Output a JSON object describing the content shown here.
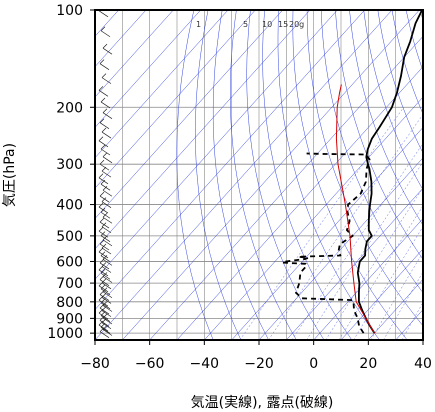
{
  "chart_data": {
    "type": "line",
    "title": "",
    "xlabel": "気温(実線), 露点(破線)",
    "ylabel": "気圧(hPa)",
    "xlim": [
      -80,
      40
    ],
    "ylim": [
      1050,
      100
    ],
    "y_scale": "log",
    "x_ticks": [
      "−80",
      "−60",
      "−40",
      "−20",
      "0",
      "20",
      "40"
    ],
    "x_tick_values": [
      -80,
      -60,
      -40,
      -20,
      0,
      20,
      40
    ],
    "y_ticks": [
      "100",
      "200",
      "300",
      "400",
      "500",
      "600",
      "700",
      "800",
      "900",
      "1000"
    ],
    "y_tick_values": [
      100,
      200,
      300,
      400,
      500,
      600,
      700,
      800,
      900,
      1000
    ],
    "skew": "skew-T",
    "grid": true,
    "mixing_ratio_labels": [
      {
        "text": "1",
        "value": 1
      },
      {
        "text": "5",
        "value": 5
      },
      {
        "text": "10",
        "value": 10
      },
      {
        "text": "15",
        "value": 15
      },
      {
        "text": "20g",
        "value": 20
      }
    ],
    "series": [
      {
        "role": "temperature",
        "style": "solid",
        "color": "#000000",
        "points": [
          [
            1000,
            20
          ],
          [
            950,
            16
          ],
          [
            900,
            12
          ],
          [
            850,
            8
          ],
          [
            800,
            4
          ],
          [
            750,
            1
          ],
          [
            700,
            -2
          ],
          [
            650,
            -6
          ],
          [
            600,
            -9
          ],
          [
            575,
            -9
          ],
          [
            550,
            -11
          ],
          [
            520,
            -13
          ],
          [
            500,
            -13
          ],
          [
            480,
            -16
          ],
          [
            450,
            -19
          ],
          [
            420,
            -22
          ],
          [
            400,
            -24
          ],
          [
            370,
            -27
          ],
          [
            340,
            -31
          ],
          [
            310,
            -36
          ],
          [
            300,
            -38
          ],
          [
            285,
            -41
          ],
          [
            270,
            -43
          ],
          [
            250,
            -45
          ],
          [
            230,
            -46
          ],
          [
            200,
            -48
          ],
          [
            180,
            -51
          ],
          [
            160,
            -55
          ],
          [
            140,
            -60
          ],
          [
            125,
            -63
          ],
          [
            110,
            -67
          ],
          [
            100,
            -69
          ]
        ]
      },
      {
        "role": "dewpoint",
        "style": "dashed",
        "color": "#000000",
        "points": [
          [
            1000,
            16
          ],
          [
            950,
            12
          ],
          [
            900,
            9
          ],
          [
            850,
            5
          ],
          [
            800,
            2
          ],
          [
            790,
            1
          ],
          [
            780,
            -18
          ],
          [
            750,
            -22
          ],
          [
            700,
            -24
          ],
          [
            650,
            -27
          ],
          [
            620,
            -27
          ],
          [
            610,
            -28
          ],
          [
            605,
            -37
          ],
          [
            600,
            -36
          ],
          [
            590,
            -30
          ],
          [
            585,
            -29
          ],
          [
            580,
            -33
          ],
          [
            575,
            -18
          ],
          [
            560,
            -20
          ],
          [
            530,
            -22
          ],
          [
            500,
            -20
          ],
          [
            480,
            -24
          ],
          [
            450,
            -26
          ],
          [
            420,
            -30
          ],
          [
            400,
            -32
          ],
          [
            370,
            -31
          ],
          [
            340,
            -33
          ],
          [
            310,
            -37
          ],
          [
            300,
            -38
          ],
          [
            290,
            -39
          ],
          [
            280,
            -42
          ],
          [
            279,
            -57
          ],
          [
            278,
            -64
          ]
        ]
      },
      {
        "role": "parcel",
        "style": "solid",
        "color": "#d40000",
        "points": [
          [
            1000,
            20
          ],
          [
            800,
            3
          ],
          [
            700,
            -4
          ],
          [
            600,
            -12
          ],
          [
            500,
            -21
          ],
          [
            400,
            -33
          ],
          [
            300,
            -49
          ],
          [
            250,
            -58
          ],
          [
            200,
            -68
          ],
          [
            180,
            -72
          ],
          [
            170,
            -74
          ]
        ]
      }
    ],
    "wind_barbs_column": true,
    "colors": {
      "temperature": "#000000",
      "dewpoint": "#000000",
      "parcel": "#d40000",
      "isopleths": "#3344dd",
      "grid": "#888888"
    }
  }
}
